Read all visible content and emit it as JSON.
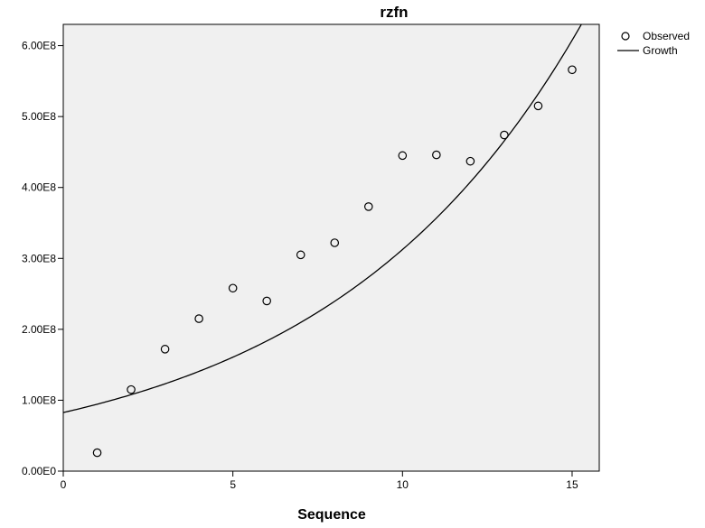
{
  "chart_data": {
    "type": "scatter",
    "title": "rzfn",
    "xlabel": "Sequence",
    "ylabel": "",
    "xlim": [
      0,
      15.8
    ],
    "ylim": [
      0,
      630000000
    ],
    "xticks": [
      0,
      5,
      10,
      15
    ],
    "xtick_labels": [
      "0",
      "5",
      "10",
      "15"
    ],
    "yticks": [
      0,
      100000000,
      200000000,
      300000000,
      400000000,
      500000000,
      600000000
    ],
    "ytick_labels": [
      "0.00E0",
      "1.00E8",
      "2.00E8",
      "3.00E8",
      "4.00E8",
      "5.00E8",
      "6.00E8"
    ],
    "grid": false,
    "legend_position": "top-right outside",
    "background_color": "#f0f0f0",
    "series": [
      {
        "name": "Observed",
        "type": "scatter",
        "marker": "open-circle",
        "x": [
          1,
          2,
          3,
          4,
          5,
          6,
          7,
          8,
          9,
          10,
          11,
          12,
          13,
          14,
          15
        ],
        "y": [
          26000000,
          115000000,
          172000000,
          215000000,
          258000000,
          240000000,
          305000000,
          322000000,
          373000000,
          445000000,
          446000000,
          437000000,
          474000000,
          515000000,
          566000000
        ]
      },
      {
        "name": "Growth",
        "type": "line",
        "model": "growth",
        "equation": "y = exp(b0 + b1*x)",
        "b0": 18.23,
        "b1": 0.133,
        "x_range": [
          0,
          15.8
        ]
      }
    ]
  }
}
